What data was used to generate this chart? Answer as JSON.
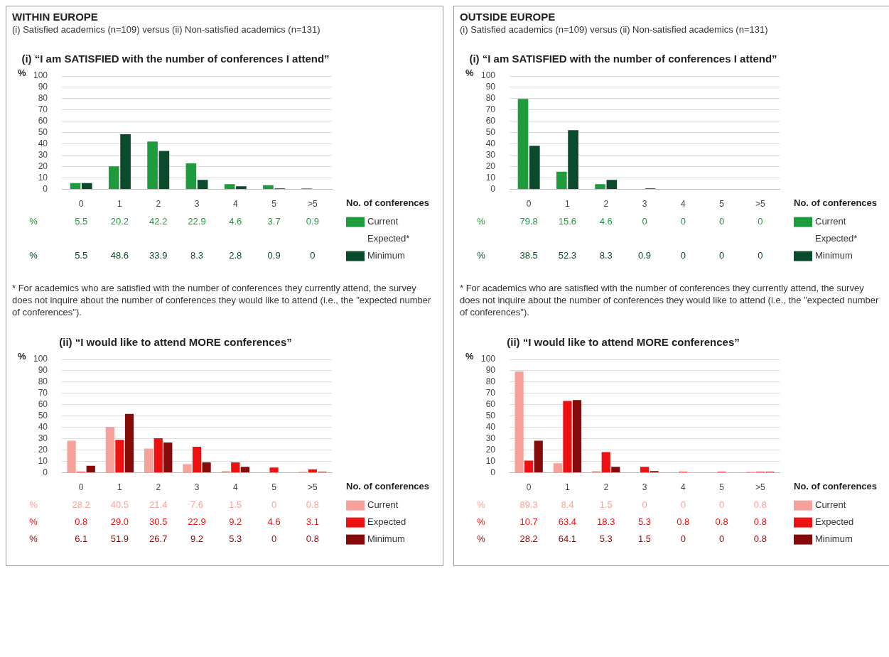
{
  "chart_data": [
    {
      "type": "bar",
      "title": "(i) “I am SATISFIED with the number of conferences I attend”",
      "ylabel": "%",
      "xlabel": "No. of conferences",
      "categories": [
        "0",
        "1",
        "2",
        "3",
        "4",
        "5",
        ">5"
      ],
      "series": [
        {
          "name": "Current",
          "color": "#1e9b3c",
          "values": [
            5.5,
            20.2,
            42.2,
            22.9,
            4.6,
            3.7,
            0.9
          ],
          "value_labels": [
            "5.5",
            "20.2",
            "42.2",
            "22.9",
            "4.6",
            "3.7",
            "0.9"
          ]
        },
        {
          "name": "Minimum",
          "color": "#0b4a2a",
          "values": [
            5.5,
            48.6,
            33.9,
            8.3,
            2.8,
            0.9,
            0
          ],
          "value_labels": [
            "5.5",
            "48.6",
            "33.9",
            "8.3",
            "2.8",
            "0.9",
            "0"
          ]
        }
      ],
      "ylim": [
        0,
        100
      ],
      "yticks": [
        0,
        10,
        20,
        30,
        40,
        50,
        60,
        70,
        80,
        90,
        100
      ],
      "grid": "y",
      "legend": "bottom right",
      "annotations": [
        "WITHIN EUROPE",
        "(i) Satisfied academics (n=109) versus (ii) Non-satisfied academics (n=131)",
        "Expected*",
        "* For academics who are satisfied with the number of conferences they currently attend, the survey does not inquire about the number of conferences they would like to attend (i.e., the \"expected number of conferences\")."
      ]
    },
    {
      "type": "bar",
      "title": "(i) “I am SATISFIED with the number of conferences I attend”",
      "ylabel": "%",
      "xlabel": "No. of conferences",
      "categories": [
        "0",
        "1",
        "2",
        "3",
        "4",
        "5",
        ">5"
      ],
      "series": [
        {
          "name": "Current",
          "color": "#1e9b3c",
          "values": [
            79.8,
            15.6,
            4.6,
            0,
            0,
            0,
            0
          ],
          "value_labels": [
            "79.8",
            "15.6",
            "4.6",
            "0",
            "0",
            "0",
            "0"
          ]
        },
        {
          "name": "Minimum",
          "color": "#0b4a2a",
          "values": [
            38.5,
            52.3,
            8.3,
            0.9,
            0,
            0,
            0
          ],
          "value_labels": [
            "38.5",
            "52.3",
            "8.3",
            "0.9",
            "0",
            "0",
            "0"
          ]
        }
      ],
      "ylim": [
        0,
        100
      ],
      "yticks": [
        0,
        10,
        20,
        30,
        40,
        50,
        60,
        70,
        80,
        90,
        100
      ],
      "grid": "y",
      "legend": "bottom right",
      "annotations": [
        "OUTSIDE EUROPE",
        "(i) Satisfied academics (n=109) versus (ii) Non-satisfied academics (n=131)",
        "Expected*",
        "* For academics who are satisfied with the number of conferences they currently attend, the survey does not inquire about the number of conferences they would like to attend (i.e., the \"expected number of conferences\")."
      ]
    },
    {
      "type": "bar",
      "title": "(ii) “I would like to attend MORE conferences”",
      "ylabel": "%",
      "xlabel": "No. of conferences",
      "categories": [
        "0",
        "1",
        "2",
        "3",
        "4",
        "5",
        ">5"
      ],
      "series": [
        {
          "name": "Current",
          "color": "#f7a19b",
          "values": [
            28.2,
            40.5,
            21.4,
            7.6,
            1.5,
            0,
            0.8
          ],
          "value_labels": [
            "28.2",
            "40.5",
            "21.4",
            "7.6",
            "1.5",
            "0",
            "0.8"
          ]
        },
        {
          "name": "Expected",
          "color": "#ee1111",
          "values": [
            0.8,
            29.0,
            30.5,
            22.9,
            9.2,
            4.6,
            3.1
          ],
          "value_labels": [
            "0.8",
            "29.0",
            "30.5",
            "22.9",
            "9.2",
            "4.6",
            "3.1"
          ]
        },
        {
          "name": "Minimum",
          "color": "#860a0a",
          "values": [
            6.1,
            51.9,
            26.7,
            9.2,
            5.3,
            0,
            0.8
          ],
          "value_labels": [
            "6.1",
            "51.9",
            "26.7",
            "9.2",
            "5.3",
            "0",
            "0.8"
          ]
        }
      ],
      "ylim": [
        0,
        100
      ],
      "yticks": [
        0,
        10,
        20,
        30,
        40,
        50,
        60,
        70,
        80,
        90,
        100
      ],
      "grid": "y",
      "legend": "bottom right"
    },
    {
      "type": "bar",
      "title": "(ii) “I would like to attend MORE conferences”",
      "ylabel": "%",
      "xlabel": "No. of conferences",
      "categories": [
        "0",
        "1",
        "2",
        "3",
        "4",
        "5",
        ">5"
      ],
      "series": [
        {
          "name": "Current",
          "color": "#f7a19b",
          "values": [
            89.3,
            8.4,
            1.5,
            0,
            0,
            0,
            0.8
          ],
          "value_labels": [
            "89.3",
            "8.4",
            "1.5",
            "0",
            "0",
            "0",
            "0.8"
          ]
        },
        {
          "name": "Expected",
          "color": "#ee1111",
          "values": [
            10.7,
            63.4,
            18.3,
            5.3,
            0.8,
            0.8,
            0.8
          ],
          "value_labels": [
            "10.7",
            "63.4",
            "18.3",
            "5.3",
            "0.8",
            "0.8",
            "0.8"
          ]
        },
        {
          "name": "Minimum",
          "color": "#860a0a",
          "values": [
            28.2,
            64.1,
            5.3,
            1.5,
            0,
            0,
            0.8
          ],
          "value_labels": [
            "28.2",
            "64.1",
            "5.3",
            "1.5",
            "0",
            "0",
            "0.8"
          ]
        }
      ],
      "ylim": [
        0,
        100
      ],
      "yticks": [
        0,
        10,
        20,
        30,
        40,
        50,
        60,
        70,
        80,
        90,
        100
      ],
      "grid": "y",
      "legend": "bottom right"
    }
  ]
}
